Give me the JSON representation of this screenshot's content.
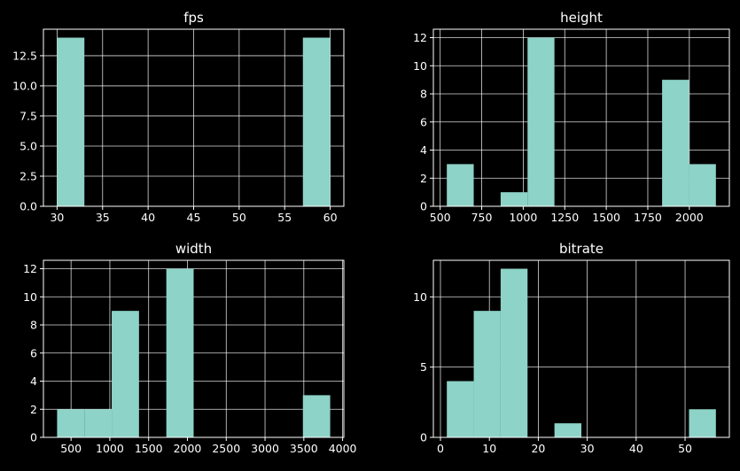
{
  "figure": {
    "background": "#000000",
    "text_color": "#ffffff",
    "grid_color": "#ffffff",
    "bar_color": "#8dd3c7",
    "bar_edge_color": "#ffffff"
  },
  "chart_data": [
    {
      "type": "bar",
      "subtype": "histogram",
      "title": "fps",
      "xlabel": "",
      "ylabel": "",
      "grid": true,
      "bin_edges": [
        30,
        33,
        36,
        39,
        42,
        45,
        48,
        51,
        54,
        57,
        60
      ],
      "counts": [
        14,
        0,
        0,
        0,
        0,
        0,
        0,
        0,
        0,
        14
      ],
      "xlim": [
        28.5,
        61.5
      ],
      "ylim": [
        0,
        14.7
      ],
      "xticks": [
        30,
        35,
        40,
        45,
        50,
        55,
        60
      ],
      "xtick_labels": [
        "30",
        "35",
        "40",
        "45",
        "50",
        "55",
        "60"
      ],
      "yticks": [
        0,
        2.5,
        5,
        7.5,
        10,
        12.5
      ],
      "ytick_labels": [
        "0.0",
        "2.5",
        "5.0",
        "7.5",
        "10.0",
        "12.5"
      ]
    },
    {
      "type": "bar",
      "subtype": "histogram",
      "title": "height",
      "xlabel": "",
      "ylabel": "",
      "grid": true,
      "bin_edges": [
        540,
        702,
        864,
        1026,
        1188,
        1350,
        1512,
        1674,
        1836,
        1998,
        2160
      ],
      "counts": [
        3,
        0,
        1,
        12,
        0,
        0,
        0,
        0,
        9,
        3
      ],
      "xlim": [
        459,
        2241
      ],
      "ylim": [
        0,
        12.6
      ],
      "xticks": [
        500,
        750,
        1000,
        1250,
        1500,
        1750,
        2000
      ],
      "xtick_labels": [
        "500",
        "750",
        "1000",
        "1250",
        "1500",
        "1750",
        "2000"
      ],
      "yticks": [
        0,
        2,
        4,
        6,
        8,
        10,
        12
      ],
      "ytick_labels": [
        "0",
        "2",
        "4",
        "6",
        "8",
        "10",
        "12"
      ]
    },
    {
      "type": "bar",
      "subtype": "histogram",
      "title": "width",
      "xlabel": "",
      "ylabel": "",
      "grid": true,
      "bin_edges": [
        320,
        672,
        1024,
        1376,
        1728,
        2080,
        2432,
        2784,
        3136,
        3488,
        3840
      ],
      "counts": [
        2,
        2,
        9,
        0,
        12,
        0,
        0,
        0,
        0,
        3
      ],
      "xlim": [
        144,
        4016
      ],
      "ylim": [
        0,
        12.6
      ],
      "xticks": [
        500,
        1000,
        1500,
        2000,
        2500,
        3000,
        3500,
        4000
      ],
      "xtick_labels": [
        "500",
        "1000",
        "1500",
        "2000",
        "2500",
        "3000",
        "3500",
        "4000"
      ],
      "yticks": [
        0,
        2,
        4,
        6,
        8,
        10,
        12
      ],
      "ytick_labels": [
        "0",
        "2",
        "4",
        "6",
        "8",
        "10",
        "12"
      ]
    },
    {
      "type": "bar",
      "subtype": "histogram",
      "title": "bitrate",
      "xlabel": "",
      "ylabel": "",
      "grid": true,
      "bin_edges": [
        1.3,
        6.8,
        12.3,
        17.8,
        23.3,
        28.8,
        34.3,
        39.8,
        45.3,
        50.8,
        56.3
      ],
      "counts": [
        4,
        9,
        12,
        0,
        1,
        0,
        0,
        0,
        0,
        2
      ],
      "xlim": [
        -1.45,
        59.05
      ],
      "ylim": [
        0,
        12.6
      ],
      "xticks": [
        0,
        10,
        20,
        30,
        40,
        50
      ],
      "xtick_labels": [
        "0",
        "10",
        "20",
        "30",
        "40",
        "50"
      ],
      "yticks": [
        0,
        5,
        10
      ],
      "ytick_labels": [
        "0",
        "5",
        "10"
      ]
    }
  ]
}
